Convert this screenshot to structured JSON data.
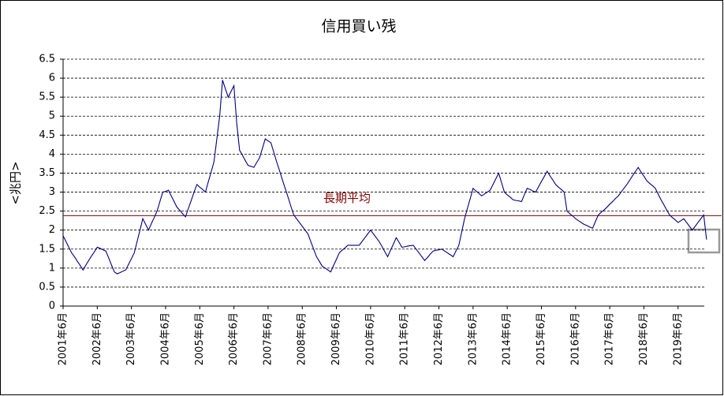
{
  "chart_data": {
    "type": "line",
    "title": "信用買い残",
    "y_label": "<兆円>",
    "categories": [
      "2001年6月",
      null,
      null,
      null,
      null,
      null,
      null,
      null,
      null,
      null,
      null,
      null,
      "2002年6月",
      null,
      null,
      null,
      null,
      null,
      null,
      null,
      null,
      null,
      null,
      null,
      "2003年6月",
      null,
      null,
      null,
      null,
      null,
      null,
      null,
      null,
      null,
      null,
      null,
      "2004年6月",
      null,
      null,
      null,
      null,
      null,
      null,
      null,
      null,
      null,
      null,
      null,
      "2005年6月",
      null,
      null,
      null,
      null,
      null,
      null,
      null,
      null,
      null,
      null,
      null,
      "2006年6月",
      null,
      null,
      null,
      null,
      null,
      null,
      null,
      null,
      null,
      null,
      null,
      "2007年6月",
      null,
      null,
      null,
      null,
      null,
      null,
      null,
      null,
      null,
      null,
      null,
      "2008年6月",
      null,
      null,
      null,
      null,
      null,
      null,
      null,
      null,
      null,
      null,
      null,
      "2009年6月",
      null,
      null,
      null,
      null,
      null,
      null,
      null,
      null,
      null,
      null,
      null,
      "2010年6月",
      null,
      null,
      null,
      null,
      null,
      null,
      null,
      null,
      null,
      null,
      null,
      "2011年6月",
      null,
      null,
      null,
      null,
      null,
      null,
      null,
      null,
      null,
      null,
      null,
      "2012年6月",
      null,
      null,
      null,
      null,
      null,
      null,
      null,
      null,
      null,
      null,
      null,
      "2013年6月",
      null,
      null,
      null,
      null,
      null,
      null,
      null,
      null,
      null,
      null,
      null,
      "2014年6月",
      null,
      null,
      null,
      null,
      null,
      null,
      null,
      null,
      null,
      null,
      null,
      "2015年6月",
      null,
      null,
      null,
      null,
      null,
      null,
      null,
      null,
      null,
      null,
      null,
      "2016年6月",
      null,
      null,
      null,
      null,
      null,
      null,
      null,
      null,
      null,
      null,
      null,
      "2017年6月",
      null,
      null,
      null,
      null,
      null,
      null,
      null,
      null,
      null,
      null,
      null,
      "2018年6月",
      null,
      null,
      null,
      null,
      null,
      null,
      null,
      null,
      null,
      null,
      null,
      "2019年6月",
      null,
      null,
      null,
      null,
      null,
      null,
      null,
      null,
      null,
      null
    ],
    "values": [
      1.85,
      1.7,
      1.55,
      1.4,
      1.3,
      1.18,
      1.07,
      0.95,
      1.08,
      1.2,
      1.32,
      1.43,
      1.55,
      1.52,
      1.48,
      1.45,
      1.27,
      1.08,
      0.9,
      0.85,
      0.88,
      0.92,
      0.95,
      1.1,
      1.25,
      1.4,
      1.7,
      2.0,
      2.3,
      2.15,
      2.0,
      2.17,
      2.33,
      2.5,
      2.75,
      3.0,
      3.02,
      3.05,
      2.9,
      2.75,
      2.6,
      2.52,
      2.43,
      2.35,
      2.57,
      2.78,
      3.0,
      3.2,
      3.13,
      3.07,
      3.0,
      3.27,
      3.53,
      3.8,
      4.4,
      5.0,
      5.95,
      5.72,
      5.5,
      5.65,
      5.8,
      4.8,
      4.1,
      3.97,
      3.83,
      3.7,
      3.68,
      3.65,
      3.78,
      3.9,
      4.15,
      4.4,
      4.35,
      4.3,
      4.05,
      3.8,
      3.57,
      3.33,
      3.1,
      2.87,
      2.63,
      2.4,
      2.3,
      2.2,
      2.1,
      2.0,
      1.9,
      1.7,
      1.5,
      1.3,
      1.18,
      1.05,
      1.0,
      0.95,
      0.9,
      1.07,
      1.23,
      1.4,
      1.47,
      1.53,
      1.6,
      1.6,
      1.6,
      1.6,
      1.6,
      1.7,
      1.8,
      1.9,
      2.0,
      1.9,
      1.8,
      1.7,
      1.57,
      1.43,
      1.3,
      1.47,
      1.63,
      1.8,
      1.68,
      1.55,
      1.56,
      1.58,
      1.59,
      1.6,
      1.5,
      1.4,
      1.3,
      1.2,
      1.28,
      1.37,
      1.45,
      1.47,
      1.48,
      1.5,
      1.45,
      1.4,
      1.35,
      1.3,
      1.45,
      1.6,
      1.95,
      2.3,
      2.57,
      2.83,
      3.1,
      3.03,
      2.97,
      2.9,
      2.95,
      3.0,
      3.05,
      3.2,
      3.35,
      3.5,
      3.25,
      3.0,
      2.93,
      2.87,
      2.8,
      2.78,
      2.77,
      2.75,
      2.93,
      3.1,
      3.07,
      3.03,
      3.0,
      3.14,
      3.28,
      3.41,
      3.55,
      3.43,
      3.32,
      3.2,
      3.13,
      3.07,
      3.0,
      2.5,
      2.43,
      2.37,
      2.3,
      2.25,
      2.2,
      2.15,
      2.12,
      2.08,
      2.05,
      2.23,
      2.4,
      2.47,
      2.53,
      2.6,
      2.68,
      2.75,
      2.83,
      2.9,
      3.0,
      3.1,
      3.2,
      3.31,
      3.43,
      3.54,
      3.65,
      3.53,
      3.42,
      3.3,
      3.23,
      3.17,
      3.1,
      2.95,
      2.8,
      2.67,
      2.53,
      2.4,
      2.33,
      2.27,
      2.2,
      2.25,
      2.3,
      2.2,
      2.1,
      2.0,
      2.1,
      2.2,
      2.3,
      2.4,
      1.75
    ],
    "color": "#000080",
    "ylim": [
      0,
      6.5
    ],
    "yticks": [
      0,
      0.5,
      1,
      1.5,
      2,
      2.5,
      3,
      3.5,
      4,
      4.5,
      5,
      5.5,
      6,
      6.5
    ],
    "grid": true,
    "average_line": {
      "value": 2.38,
      "label": "長期平均",
      "color": "#800000"
    }
  }
}
